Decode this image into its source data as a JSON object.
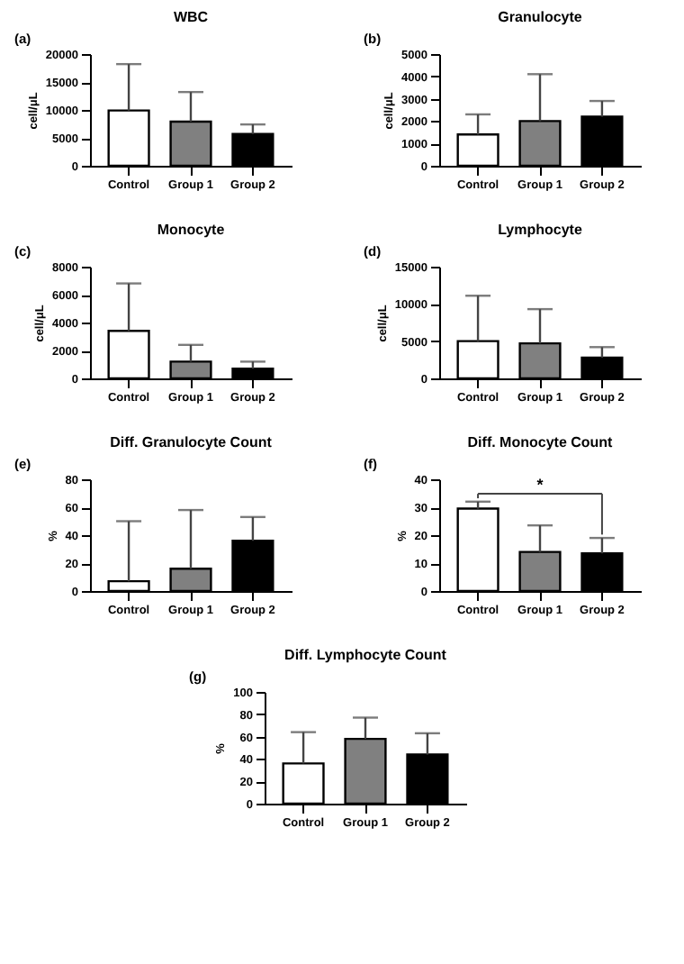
{
  "chart_data": [
    {
      "type": "bar",
      "title": "WBC",
      "ylabel": "cell/μL",
      "categories": [
        "Control",
        "Group 1",
        "Group 2"
      ],
      "values": [
        9900,
        7900,
        5700
      ],
      "colors": [
        "#ffffff",
        "#808080",
        "#000000"
      ],
      "errors": [
        [
          9900,
          18200
        ],
        [
          7900,
          13200
        ],
        [
          5700,
          7400
        ]
      ],
      "ylim": [
        0,
        20000
      ],
      "yticks": [
        0,
        5000,
        10000,
        15000,
        20000
      ],
      "annotations": [
        "(a)"
      ]
    },
    {
      "type": "bar",
      "title": "Granulocyte",
      "ylabel": "cell/μL",
      "categories": [
        "Control",
        "Group 1",
        "Group 2"
      ],
      "values": [
        1400,
        2000,
        2200
      ],
      "colors": [
        "#ffffff",
        "#808080",
        "#000000"
      ],
      "errors": [
        [
          1400,
          2300
        ],
        [
          2000,
          4100
        ],
        [
          2200,
          2900
        ]
      ],
      "ylim": [
        0,
        5000
      ],
      "yticks": [
        0,
        1000,
        2000,
        3000,
        4000,
        5000
      ],
      "annotations": [
        "(b)"
      ]
    },
    {
      "type": "bar",
      "title": "Monocyte",
      "ylabel": "cell/μL",
      "categories": [
        "Control",
        "Group 1",
        "Group 2"
      ],
      "values": [
        3400,
        1200,
        700
      ],
      "colors": [
        "#ffffff",
        "#808080",
        "#000000"
      ],
      "errors": [
        [
          3400,
          6800
        ],
        [
          1200,
          2400
        ],
        [
          700,
          1200
        ]
      ],
      "ylim": [
        0,
        8000
      ],
      "yticks": [
        0,
        2000,
        4000,
        6000,
        8000
      ],
      "annotations": [
        "(c)"
      ]
    },
    {
      "type": "bar",
      "title": "Lymphocyte",
      "ylabel": "cell/μL",
      "categories": [
        "Control",
        "Group 1",
        "Group 2"
      ],
      "values": [
        5000,
        4700,
        2800
      ],
      "colors": [
        "#ffffff",
        "#808080",
        "#000000"
      ],
      "errors": [
        [
          5000,
          11100
        ],
        [
          4700,
          9300
        ],
        [
          2800,
          4200
        ]
      ],
      "ylim": [
        0,
        15000
      ],
      "yticks": [
        0,
        5000,
        10000,
        15000
      ],
      "annotations": [
        "(d)"
      ]
    },
    {
      "type": "bar",
      "title": "Diff. Granulocyte Count",
      "ylabel": "%",
      "categories": [
        "Control",
        "Group 1",
        "Group 2"
      ],
      "values": [
        7,
        16,
        36
      ],
      "colors": [
        "#ffffff",
        "#808080",
        "#000000"
      ],
      "errors": [
        [
          7,
          50
        ],
        [
          16,
          58
        ],
        [
          36,
          53
        ]
      ],
      "ylim": [
        0,
        80
      ],
      "yticks": [
        0,
        20,
        40,
        60,
        80
      ],
      "annotations": [
        "(e)"
      ]
    },
    {
      "type": "bar",
      "title": "Diff. Monocyte Count",
      "ylabel": "%",
      "categories": [
        "Control",
        "Group 1",
        "Group 2"
      ],
      "values": [
        29.5,
        14,
        13.5
      ],
      "colors": [
        "#ffffff",
        "#808080",
        "#000000"
      ],
      "errors": [
        [
          29.5,
          32
        ],
        [
          14,
          23.5
        ],
        [
          13.5,
          19
        ]
      ],
      "ylim": [
        0,
        40
      ],
      "yticks": [
        0,
        10,
        20,
        30,
        40
      ],
      "annotations": [
        "(f)",
        "*"
      ]
    },
    {
      "type": "bar",
      "title": "Diff. Lymphocyte Count",
      "ylabel": "%",
      "categories": [
        "Control",
        "Group 1",
        "Group 2"
      ],
      "values": [
        36,
        58,
        44
      ],
      "colors": [
        "#ffffff",
        "#808080",
        "#000000"
      ],
      "errors": [
        [
          36,
          64
        ],
        [
          58,
          77
        ],
        [
          44,
          63
        ]
      ],
      "ylim": [
        0,
        100
      ],
      "yticks": [
        0,
        20,
        40,
        60,
        80,
        100
      ],
      "annotations": [
        "(g)"
      ]
    }
  ]
}
